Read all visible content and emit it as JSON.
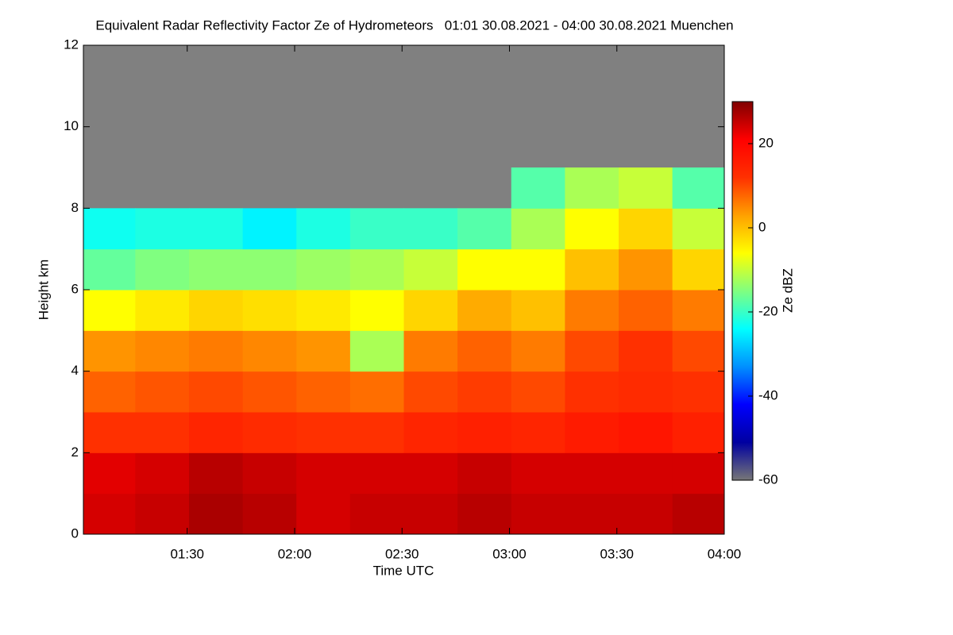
{
  "chart_data": {
    "type": "heatmap",
    "title": "Equivalent Radar Reflectivity Factor Ze of Hydrometeors   01:01 30.08.2021 - 04:00 30.08.2021 Muenchen",
    "x_label": "Time UTC",
    "y_label": "Height km",
    "colorbar_label": "Ze dBZ",
    "xlim": [
      61,
      240
    ],
    "xticks": [
      {
        "value": 90,
        "label": "01:30"
      },
      {
        "value": 120,
        "label": "02:00"
      },
      {
        "value": 150,
        "label": "02:30"
      },
      {
        "value": 180,
        "label": "03:00"
      },
      {
        "value": 210,
        "label": "03:30"
      },
      {
        "value": 240,
        "label": "04:00"
      }
    ],
    "ylim": [
      0,
      12
    ],
    "yticks": [
      0,
      2,
      4,
      6,
      8,
      10,
      12
    ],
    "zlim": [
      -60,
      30
    ],
    "zticks": [
      20,
      0,
      -20,
      -40,
      -60
    ],
    "colors": [
      "#777777",
      "#0000a0",
      "#0000ff",
      "#0090ff",
      "#00ffff",
      "#80ff80",
      "#ffff00",
      "#ffa000",
      "#ff3000",
      "#ff0000",
      "#800000"
    ],
    "no_signal_color": "#808080",
    "x": [
      68,
      83,
      98,
      113,
      128,
      143,
      158,
      173,
      188,
      203,
      218,
      233
    ],
    "y": [
      0.5,
      1.5,
      2.5,
      3.5,
      4.5,
      5.5,
      6.5,
      7.5,
      8.5,
      9.5,
      10.5,
      11.5
    ],
    "z": [
      [
        24,
        23,
        12,
        8,
        4,
        -6,
        -17,
        -23,
        null,
        null,
        null,
        null
      ],
      [
        25,
        24,
        12,
        9,
        5,
        -4,
        -15,
        -22,
        null,
        null,
        null,
        null
      ],
      [
        27,
        26,
        14,
        10,
        6,
        -2,
        -14,
        -22,
        null,
        null,
        null,
        null
      ],
      [
        26,
        25,
        13,
        9,
        5,
        -3,
        -14,
        -25,
        null,
        null,
        null,
        null
      ],
      [
        24,
        24,
        12,
        8,
        4,
        -4,
        -13,
        -22,
        null,
        null,
        null,
        null
      ],
      [
        25,
        24,
        12,
        7,
        -12,
        -6,
        -12,
        -20,
        null,
        null,
        null,
        null
      ],
      [
        25,
        24,
        14,
        10,
        6,
        -2,
        -10,
        -20,
        null,
        null,
        null,
        null
      ],
      [
        26,
        25,
        15,
        11,
        8,
        2,
        -6,
        -18,
        null,
        null,
        null,
        null
      ],
      [
        25,
        24,
        14,
        10,
        6,
        0,
        -6,
        -12,
        -18,
        null,
        null,
        null
      ],
      [
        25,
        24,
        16,
        12,
        10,
        6,
        0,
        -6,
        -12,
        null,
        null,
        null
      ],
      [
        25,
        24,
        17,
        13,
        12,
        8,
        4,
        -2,
        -10,
        null,
        null,
        null
      ],
      [
        26,
        24,
        15,
        12,
        10,
        6,
        -2,
        -10,
        -18,
        null,
        null,
        null
      ]
    ]
  }
}
